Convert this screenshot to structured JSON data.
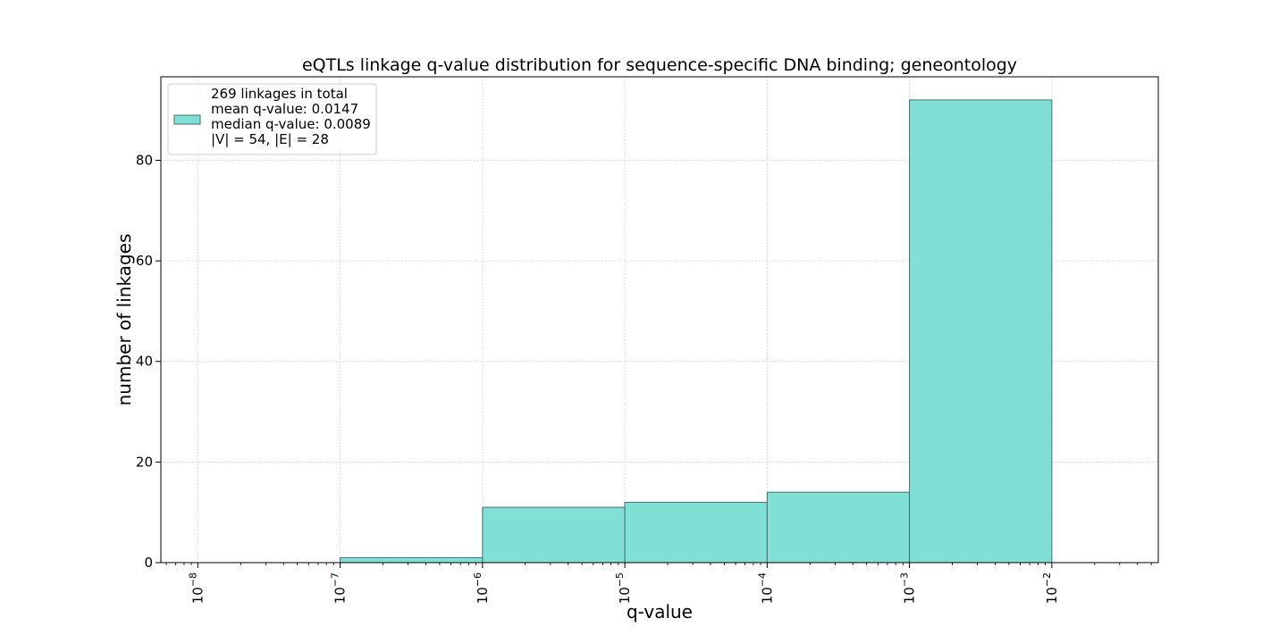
{
  "chart_data": {
    "type": "bar",
    "title": "eQTLs linkage q-value distribution for sequence-specific DNA binding; geneontology",
    "xlabel": "q-value",
    "ylabel": "number of linkages",
    "x_scale": "log",
    "x_ticks": [
      {
        "base": "10",
        "exp": "−8",
        "value": 1e-08
      },
      {
        "base": "10",
        "exp": "−7",
        "value": 1e-07
      },
      {
        "base": "10",
        "exp": "−6",
        "value": 1e-06
      },
      {
        "base": "10",
        "exp": "−5",
        "value": 1e-05
      },
      {
        "base": "10",
        "exp": "−4",
        "value": 0.0001
      },
      {
        "base": "10",
        "exp": "−3",
        "value": 0.001
      },
      {
        "base": "10",
        "exp": "−2",
        "value": 0.01
      }
    ],
    "y_ticks": [
      {
        "label": "0",
        "value": 0
      },
      {
        "label": "20",
        "value": 20
      },
      {
        "label": "40",
        "value": 40
      },
      {
        "label": "60",
        "value": 60
      },
      {
        "label": "80",
        "value": 80
      }
    ],
    "xlim": [
      5.5e-09,
      0.056
    ],
    "ylim": [
      0,
      96.6
    ],
    "grid": true,
    "bars": [
      {
        "x0": 1e-08,
        "x1": 1e-07,
        "value": 0
      },
      {
        "x0": 1e-07,
        "x1": 1e-06,
        "value": 1
      },
      {
        "x0": 1e-06,
        "x1": 1e-05,
        "value": 11
      },
      {
        "x0": 1e-05,
        "x1": 0.0001,
        "value": 12
      },
      {
        "x0": 0.0001,
        "x1": 0.001,
        "value": 14
      },
      {
        "x0": 0.001,
        "x1": 0.01,
        "value": 92
      }
    ],
    "legend": {
      "placement": "top-left",
      "lines": [
        "269 linkages in total",
        "mean q-value: 0.0147",
        "median q-value: 0.0089",
        "|V| = 54, |E| = 28"
      ]
    },
    "colors": {
      "bar_fill": "#80e0d6",
      "bar_edge": "#4a6e6a",
      "grid": "#c8c8c8",
      "axis": "#000000"
    }
  }
}
